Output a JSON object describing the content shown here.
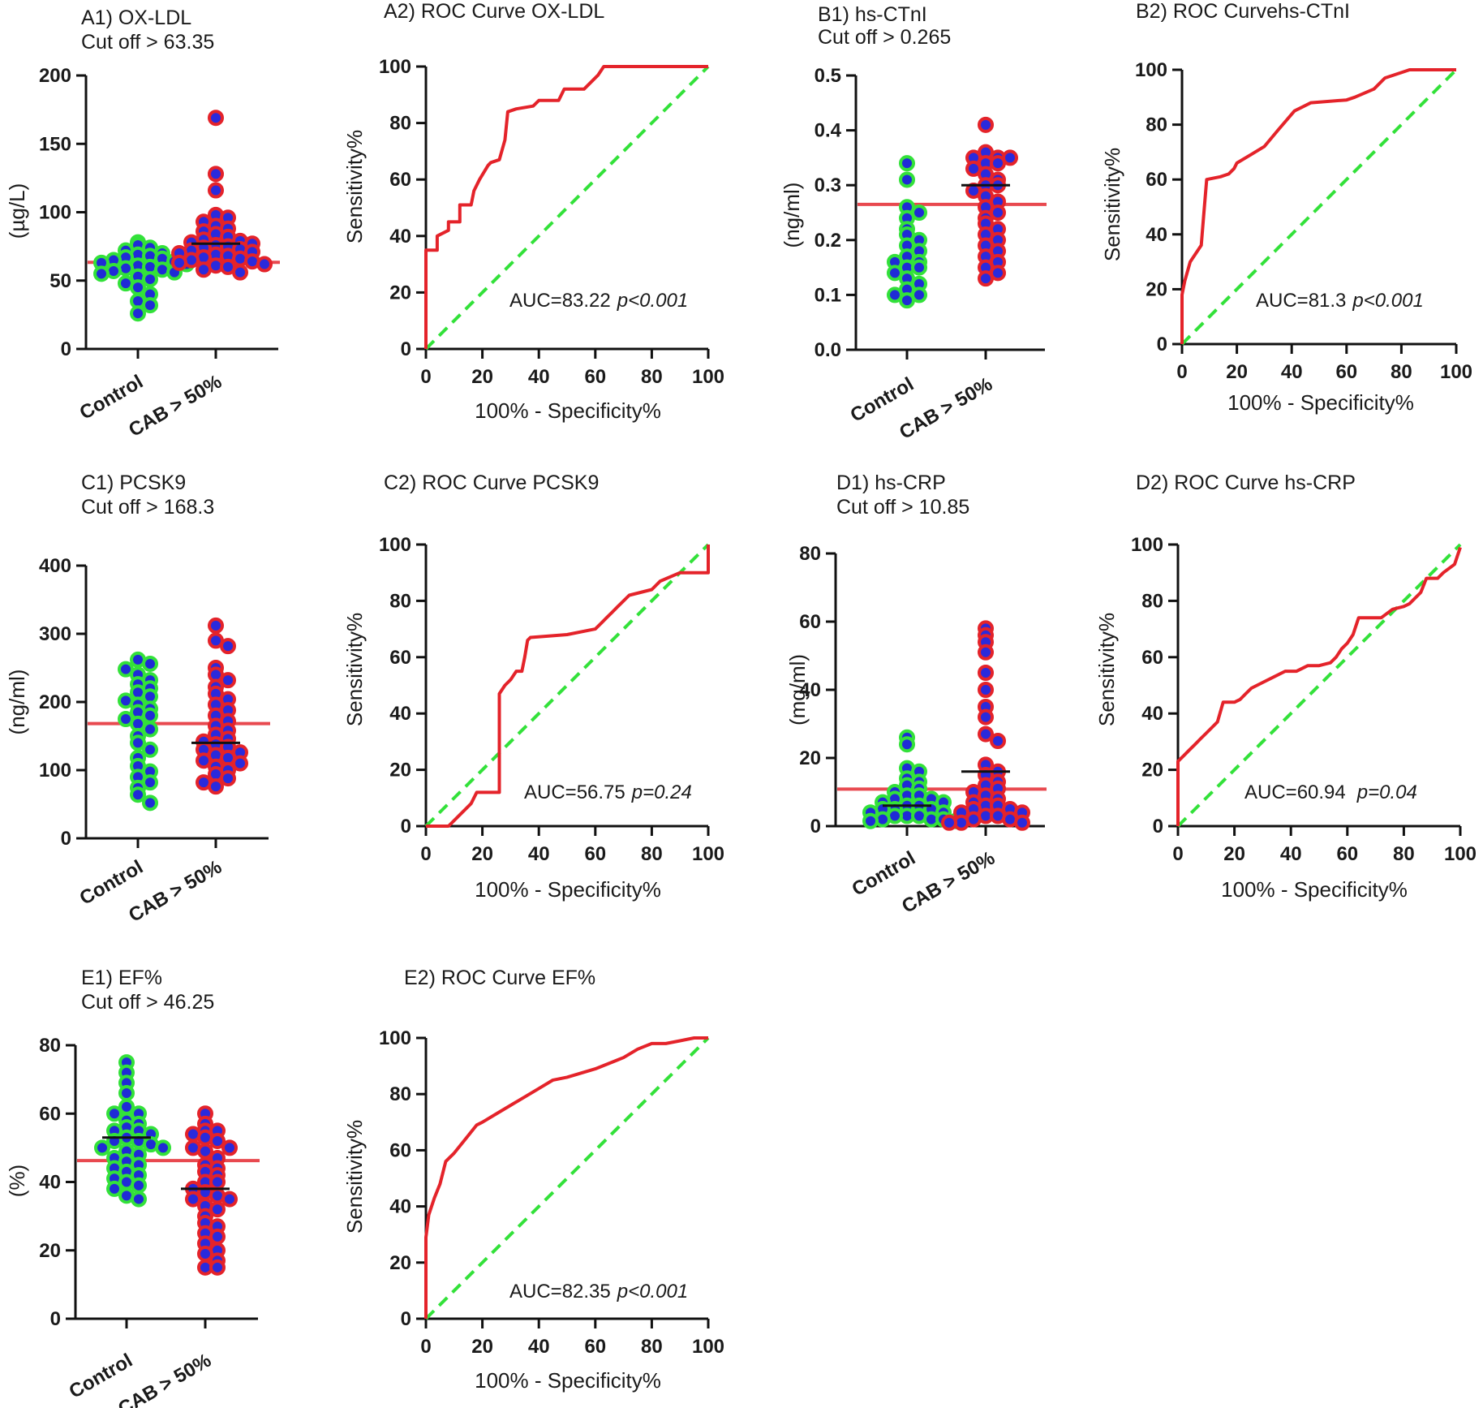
{
  "figure": {
    "colors": {
      "control_fill": "#1f2bd6",
      "control_ring": "#33e13a",
      "case_fill": "#2a2adc",
      "case_ring": "#e4232a",
      "roc_line": "#e4232a",
      "diag_line": "#33e13a",
      "cutoff_line": "#e8494f"
    }
  },
  "chart_data": [
    {
      "id": "A1",
      "type": "scatter",
      "title": "A1) OX-LDL",
      "subtitle": "Cut off > 63.35",
      "ylabel": "(µg/L)",
      "ylim": [
        0,
        200
      ],
      "yticks": [
        0,
        50,
        100,
        150,
        200
      ],
      "categories": [
        "Control",
        "CAB > 50%"
      ],
      "cutoff": 63.35,
      "medians": [
        null,
        77
      ],
      "series": [
        {
          "name": "Control",
          "values": [
            78,
            76,
            74,
            72,
            70,
            69,
            68,
            67,
            66,
            65,
            64,
            63,
            62,
            61,
            60,
            59,
            58,
            57,
            56,
            55,
            53,
            51,
            48,
            45,
            40,
            35,
            32,
            26
          ]
        },
        {
          "name": "CAB > 50%",
          "values": [
            169,
            128,
            116,
            98,
            96,
            93,
            90,
            88,
            86,
            84,
            82,
            80,
            79,
            78,
            77,
            76,
            75,
            74,
            73,
            72,
            71,
            70,
            69,
            68,
            67,
            66,
            65,
            64,
            63,
            62,
            61,
            60,
            58,
            56
          ]
        }
      ]
    },
    {
      "id": "A2",
      "type": "line",
      "title": "A2) ROC Curve OX-LDL",
      "xlabel": "100% - Specificity%",
      "ylabel": "Sensitivity%",
      "xlim": [
        0,
        100
      ],
      "ylim": [
        0,
        100
      ],
      "xticks": [
        0,
        20,
        40,
        60,
        80,
        100
      ],
      "yticks": [
        0,
        20,
        40,
        60,
        80,
        100
      ],
      "annotation": "AUC=83.22",
      "annotation_p": "p<0.001",
      "x": [
        0,
        0,
        4,
        4,
        8,
        8,
        12,
        12,
        16,
        17,
        19,
        22,
        23,
        26,
        28,
        29,
        32,
        38,
        40,
        47,
        49,
        56,
        60,
        61,
        63,
        65,
        67,
        100
      ],
      "y": [
        0,
        35,
        35,
        40,
        42,
        45,
        45,
        51,
        51,
        56,
        60,
        65,
        66,
        67,
        74,
        84,
        85,
        86,
        88,
        88,
        92,
        92,
        96,
        97,
        100,
        100,
        100,
        100
      ]
    },
    {
      "id": "B1",
      "type": "scatter",
      "title": "B1) hs-CTnI",
      "subtitle": "Cut off > 0.265",
      "ylabel": "(ng/ml)",
      "ylim": [
        0,
        0.5
      ],
      "yticks": [
        0.0,
        0.1,
        0.2,
        0.3,
        0.4,
        0.5
      ],
      "categories": [
        "Control",
        "CAB > 50%"
      ],
      "cutoff": 0.265,
      "medians": [
        null,
        0.3
      ],
      "series": [
        {
          "name": "Control",
          "values": [
            0.34,
            0.31,
            0.26,
            0.25,
            0.24,
            0.22,
            0.21,
            0.2,
            0.19,
            0.18,
            0.17,
            0.16,
            0.16,
            0.15,
            0.15,
            0.14,
            0.13,
            0.12,
            0.11,
            0.1,
            0.1,
            0.09
          ]
        },
        {
          "name": "CAB > 50%",
          "values": [
            0.41,
            0.36,
            0.35,
            0.35,
            0.35,
            0.34,
            0.34,
            0.33,
            0.32,
            0.31,
            0.3,
            0.3,
            0.29,
            0.28,
            0.27,
            0.26,
            0.25,
            0.24,
            0.23,
            0.22,
            0.21,
            0.2,
            0.19,
            0.18,
            0.17,
            0.16,
            0.15,
            0.14,
            0.13
          ]
        }
      ]
    },
    {
      "id": "B2",
      "type": "line",
      "title": "B2)  ROC Curvehs-CTnI",
      "xlabel": "100% - Specificity%",
      "ylabel": "Sensitivity%",
      "xlim": [
        0,
        100
      ],
      "ylim": [
        0,
        100
      ],
      "xticks": [
        0,
        20,
        40,
        60,
        80,
        100
      ],
      "yticks": [
        0,
        20,
        40,
        60,
        80,
        100
      ],
      "annotation": "AUC=81.3",
      "annotation_p": "p<0.001",
      "x": [
        0,
        0,
        1,
        3,
        7,
        8,
        9,
        14,
        17,
        19,
        20,
        25,
        30,
        35,
        41,
        47,
        60,
        63,
        70,
        74,
        80,
        83,
        85,
        100
      ],
      "y": [
        0,
        18,
        23,
        30,
        36,
        48,
        60,
        61,
        62,
        64,
        66,
        69,
        72,
        78,
        85,
        88,
        89,
        90,
        93,
        97,
        99,
        100,
        100,
        100
      ]
    },
    {
      "id": "C1",
      "type": "scatter",
      "title": "C1) PCSK9",
      "subtitle": "Cut off > 168.3",
      "ylabel": "(ng/ml)",
      "ylim": [
        0,
        400
      ],
      "yticks": [
        0,
        100,
        200,
        300,
        400
      ],
      "categories": [
        "Control",
        "CAB > 50%"
      ],
      "cutoff": 168.3,
      "medians": [
        null,
        140
      ],
      "series": [
        {
          "name": "Control",
          "values": [
            262,
            256,
            248,
            240,
            232,
            226,
            220,
            214,
            208,
            202,
            196,
            190,
            185,
            180,
            175,
            168,
            160,
            150,
            140,
            130,
            118,
            106,
            98,
            90,
            82,
            74,
            64,
            52
          ]
        },
        {
          "name": "CAB > 50%",
          "values": [
            312,
            290,
            282,
            250,
            240,
            232,
            222,
            212,
            204,
            196,
            188,
            180,
            172,
            165,
            158,
            152,
            146,
            142,
            138,
            134,
            130,
            126,
            122,
            118,
            114,
            110,
            105,
            100,
            94,
            88,
            82,
            76
          ]
        }
      ]
    },
    {
      "id": "C2",
      "type": "line",
      "title": "C2) ROC Curve PCSK9",
      "xlabel": "100% - Specificity%",
      "ylabel": "Sensitivity%",
      "xlim": [
        0,
        100
      ],
      "ylim": [
        0,
        100
      ],
      "xticks": [
        0,
        20,
        40,
        60,
        80,
        100
      ],
      "yticks": [
        0,
        20,
        40,
        60,
        80,
        100
      ],
      "annotation": "AUC=56.75",
      "annotation_p": "p=0.24",
      "x": [
        0,
        8,
        10,
        12,
        14,
        16,
        18,
        26,
        26,
        28,
        30,
        32,
        34,
        35,
        36,
        37,
        50,
        60,
        62,
        64,
        66,
        68,
        70,
        72,
        76,
        80,
        83,
        90,
        100,
        100
      ],
      "y": [
        0,
        0,
        2,
        4,
        6,
        8,
        12,
        12,
        47,
        50,
        52,
        55,
        55,
        60,
        66,
        67,
        68,
        70,
        72,
        74,
        76,
        78,
        80,
        82,
        83,
        84,
        87,
        90,
        90,
        100
      ]
    },
    {
      "id": "D1",
      "type": "scatter",
      "title": "D1) hs-CRP",
      "subtitle": "Cut off > 10.85",
      "ylabel": "(mg/ml)",
      "ylim": [
        0,
        80
      ],
      "yticks": [
        0,
        20,
        40,
        60,
        80
      ],
      "categories": [
        "Control",
        "CAB > 50%"
      ],
      "cutoff": 10.85,
      "medians": [
        6,
        16
      ],
      "series": [
        {
          "name": "Control",
          "values": [
            26,
            24,
            17,
            16,
            14,
            13,
            12,
            11,
            10,
            9,
            9,
            8,
            8,
            7,
            7,
            6,
            6,
            5,
            5,
            5,
            4,
            4,
            3,
            3,
            3,
            2,
            2,
            2,
            1.5,
            1.5
          ]
        },
        {
          "name": "CAB > 50%",
          "values": [
            58,
            56,
            54,
            51,
            45,
            40,
            35,
            32,
            27,
            25,
            18,
            16,
            15,
            13,
            12,
            11,
            10,
            9,
            8,
            7,
            6,
            6,
            5,
            5,
            4,
            4,
            3,
            3,
            2,
            2,
            1,
            1,
            1
          ]
        }
      ]
    },
    {
      "id": "D2",
      "type": "line",
      "title": "D2) ROC Curve hs-CRP",
      "xlabel": "100% - Specificity%",
      "ylabel": "Sensitivity%",
      "xlim": [
        0,
        100
      ],
      "ylim": [
        0,
        100
      ],
      "xticks": [
        0,
        20,
        40,
        60,
        80,
        100
      ],
      "yticks": [
        0,
        20,
        40,
        60,
        80,
        100
      ],
      "annotation": "AUC=60.94",
      "annotation_p": "p=0.04",
      "x": [
        0,
        0,
        2,
        4,
        6,
        8,
        10,
        12,
        14,
        16,
        20,
        22,
        24,
        26,
        30,
        34,
        38,
        42,
        46,
        50,
        54,
        56,
        58,
        60,
        62,
        64,
        72,
        76,
        80,
        82,
        86,
        88,
        92,
        94,
        98,
        100
      ],
      "y": [
        0,
        23,
        25,
        27,
        29,
        31,
        33,
        35,
        37,
        44,
        44,
        45,
        47,
        49,
        51,
        53,
        55,
        55,
        57,
        57,
        58,
        60,
        63,
        65,
        68,
        74,
        74,
        77,
        78,
        79,
        83,
        88,
        88,
        90,
        93,
        99
      ]
    },
    {
      "id": "E1",
      "type": "scatter",
      "title": "E1) EF%",
      "subtitle": "Cut off > 46.25",
      "ylabel": "(%)",
      "ylim": [
        0,
        80
      ],
      "yticks": [
        0,
        20,
        40,
        60,
        80
      ],
      "categories": [
        "Control",
        "CAB > 50%"
      ],
      "cutoff": 46.25,
      "medians": [
        53,
        38
      ],
      "series": [
        {
          "name": "Control",
          "values": [
            75,
            72,
            69,
            66,
            62,
            60,
            60,
            58,
            57,
            56,
            55,
            55,
            54,
            53,
            52,
            52,
            51,
            50,
            50,
            49,
            48,
            47,
            46,
            45,
            44,
            43,
            42,
            41,
            40,
            39,
            38,
            36,
            35
          ]
        },
        {
          "name": "CAB > 50%",
          "values": [
            60,
            57,
            55,
            55,
            54,
            53,
            52,
            50,
            50,
            49,
            47,
            45,
            44,
            43,
            42,
            40,
            40,
            38,
            37,
            36,
            35,
            35,
            33,
            32,
            30,
            28,
            27,
            25,
            24,
            22,
            20,
            19,
            17,
            15,
            15
          ]
        }
      ]
    },
    {
      "id": "E2",
      "type": "line",
      "title": "E2) ROC Curve EF%",
      "xlabel": "100% - Specificity%",
      "ylabel": "Sensitivity%",
      "xlim": [
        0,
        100
      ],
      "ylim": [
        0,
        100
      ],
      "xticks": [
        0,
        20,
        40,
        60,
        80,
        100
      ],
      "yticks": [
        0,
        20,
        40,
        60,
        80,
        100
      ],
      "annotation": "AUC=82.35",
      "annotation_p": "p<0.001",
      "x": [
        0,
        0,
        1,
        3,
        5,
        7,
        10,
        14,
        18,
        20,
        25,
        30,
        35,
        40,
        45,
        50,
        60,
        70,
        75,
        80,
        85,
        90,
        95,
        100
      ],
      "y": [
        0,
        29,
        37,
        43,
        48,
        56,
        59,
        64,
        69,
        70,
        73,
        76,
        79,
        82,
        85,
        86,
        89,
        93,
        96,
        98,
        98,
        99,
        100,
        100
      ]
    }
  ]
}
